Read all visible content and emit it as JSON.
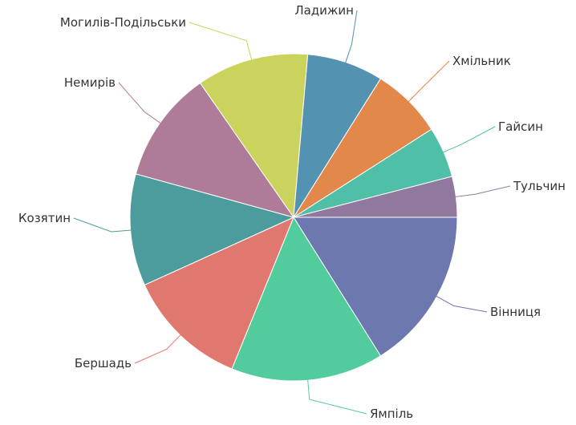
{
  "chart_data": {
    "type": "pie",
    "start_angle_deg": 0,
    "direction": "clockwise",
    "legend": "none",
    "slices": [
      {
        "label": "Вінниця",
        "value": 16,
        "color": "#6c78ae"
      },
      {
        "label": "Ямпіль",
        "value": 15,
        "color": "#52cc9c"
      },
      {
        "label": "Бершадь",
        "value": 12,
        "color": "#e07870"
      },
      {
        "label": "Козятин",
        "value": 11,
        "color": "#4c9c9e"
      },
      {
        "label": "Немирів",
        "value": 11,
        "color": "#ae7c98"
      },
      {
        "label": "Могилів-Подільськи",
        "value": 11,
        "color": "#cad45c"
      },
      {
        "label": "Ладижин",
        "value": 7.5,
        "color": "#5392b0"
      },
      {
        "label": "Хмільник",
        "value": 7,
        "color": "#e2884a"
      },
      {
        "label": "Гайсин",
        "value": 5,
        "color": "#50bfa8"
      },
      {
        "label": "Тульчин",
        "value": 4,
        "color": "#90789e"
      }
    ]
  }
}
